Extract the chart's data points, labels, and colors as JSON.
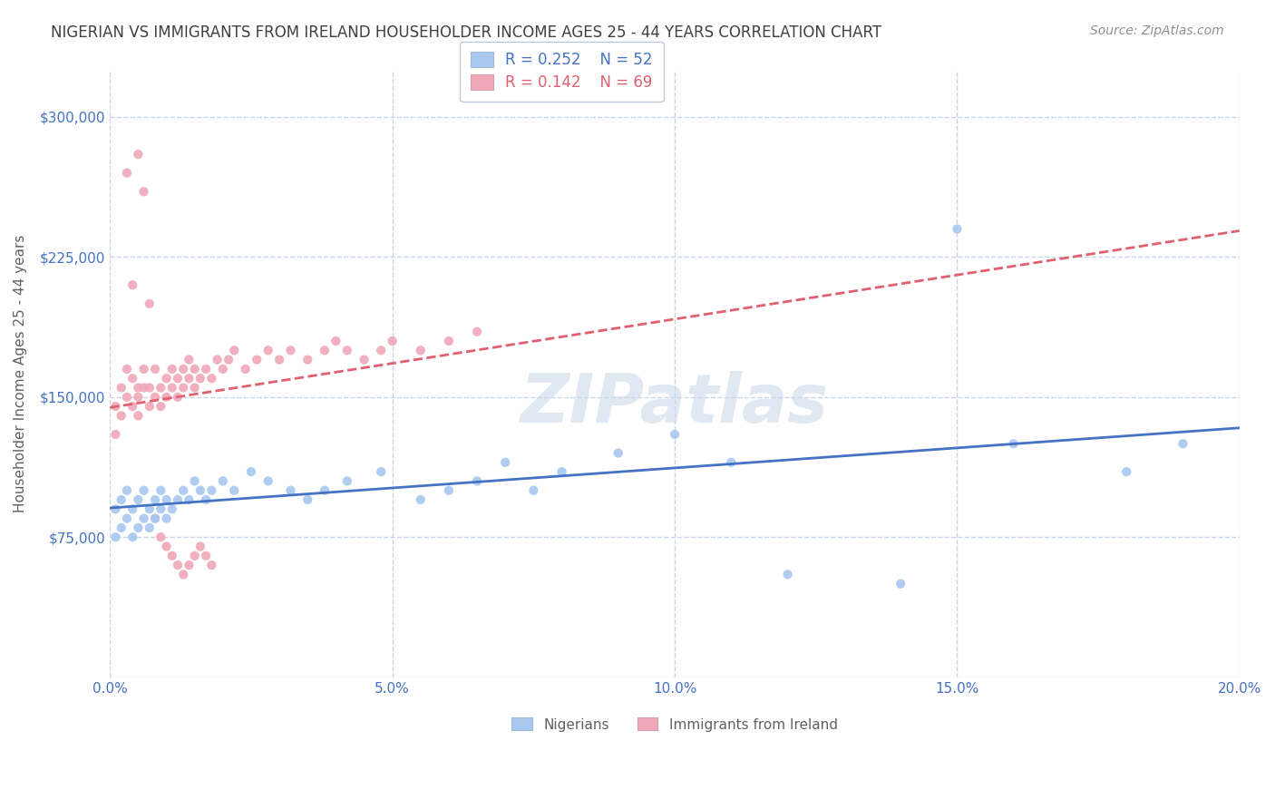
{
  "title": "NIGERIAN VS IMMIGRANTS FROM IRELAND HOUSEHOLDER INCOME AGES 25 - 44 YEARS CORRELATION CHART",
  "source": "Source: ZipAtlas.com",
  "ylabel": "Householder Income Ages 25 - 44 years",
  "xlim": [
    0.0,
    0.2
  ],
  "ylim": [
    0,
    325000
  ],
  "yticks": [
    0,
    75000,
    150000,
    225000,
    300000
  ],
  "ytick_labels": [
    "",
    "$75,000",
    "$150,000",
    "$225,000",
    "$300,000"
  ],
  "xticks": [
    0.0,
    0.05,
    0.1,
    0.15,
    0.2
  ],
  "xtick_labels": [
    "0.0%",
    "5.0%",
    "10.0%",
    "15.0%",
    "20.0%"
  ],
  "nigerians_x": [
    0.001,
    0.001,
    0.002,
    0.002,
    0.003,
    0.003,
    0.004,
    0.004,
    0.005,
    0.005,
    0.006,
    0.006,
    0.007,
    0.007,
    0.008,
    0.008,
    0.009,
    0.009,
    0.01,
    0.01,
    0.011,
    0.012,
    0.013,
    0.014,
    0.015,
    0.016,
    0.017,
    0.018,
    0.02,
    0.022,
    0.025,
    0.028,
    0.032,
    0.035,
    0.038,
    0.042,
    0.048,
    0.055,
    0.06,
    0.065,
    0.07,
    0.075,
    0.08,
    0.09,
    0.1,
    0.11,
    0.12,
    0.14,
    0.15,
    0.16,
    0.18,
    0.19
  ],
  "nigerians_y": [
    75000,
    90000,
    80000,
    95000,
    85000,
    100000,
    90000,
    75000,
    80000,
    95000,
    85000,
    100000,
    90000,
    80000,
    95000,
    85000,
    100000,
    90000,
    95000,
    85000,
    90000,
    95000,
    100000,
    95000,
    105000,
    100000,
    95000,
    100000,
    105000,
    100000,
    110000,
    105000,
    100000,
    95000,
    100000,
    105000,
    110000,
    95000,
    100000,
    105000,
    115000,
    100000,
    110000,
    120000,
    130000,
    115000,
    55000,
    50000,
    240000,
    125000,
    110000,
    125000
  ],
  "ireland_x": [
    0.001,
    0.001,
    0.002,
    0.002,
    0.003,
    0.003,
    0.004,
    0.004,
    0.005,
    0.005,
    0.005,
    0.006,
    0.006,
    0.007,
    0.007,
    0.008,
    0.008,
    0.009,
    0.009,
    0.01,
    0.01,
    0.011,
    0.011,
    0.012,
    0.012,
    0.013,
    0.013,
    0.014,
    0.014,
    0.015,
    0.015,
    0.016,
    0.017,
    0.018,
    0.019,
    0.02,
    0.021,
    0.022,
    0.024,
    0.026,
    0.028,
    0.03,
    0.032,
    0.035,
    0.038,
    0.04,
    0.042,
    0.045,
    0.048,
    0.05,
    0.055,
    0.06,
    0.065,
    0.003,
    0.004,
    0.005,
    0.006,
    0.007,
    0.008,
    0.009,
    0.01,
    0.011,
    0.012,
    0.013,
    0.014,
    0.015,
    0.016,
    0.017,
    0.018
  ],
  "ireland_y": [
    130000,
    145000,
    140000,
    155000,
    150000,
    165000,
    145000,
    160000,
    155000,
    140000,
    150000,
    155000,
    165000,
    145000,
    155000,
    150000,
    165000,
    155000,
    145000,
    160000,
    150000,
    155000,
    165000,
    150000,
    160000,
    155000,
    165000,
    160000,
    170000,
    155000,
    165000,
    160000,
    165000,
    160000,
    170000,
    165000,
    170000,
    175000,
    165000,
    170000,
    175000,
    170000,
    175000,
    170000,
    175000,
    180000,
    175000,
    170000,
    175000,
    180000,
    175000,
    180000,
    185000,
    270000,
    210000,
    280000,
    260000,
    200000,
    85000,
    75000,
    70000,
    65000,
    60000,
    55000,
    60000,
    65000,
    70000,
    65000,
    60000
  ],
  "nigerian_color": "#a8c8f0",
  "ireland_color": "#f0a8b8",
  "nigerian_line_color": "#4472c4",
  "ireland_line_color": "#e06070",
  "nigerian_R": 0.252,
  "nigerian_N": 52,
  "ireland_R": 0.142,
  "ireland_N": 69,
  "background_color": "#ffffff",
  "grid_color": "#c8d4e8",
  "title_color": "#404040",
  "axis_label_color": "#606060",
  "tick_label_color": "#4472c4",
  "legend_label1": "Nigerians",
  "legend_label2": "Immigrants from Ireland"
}
